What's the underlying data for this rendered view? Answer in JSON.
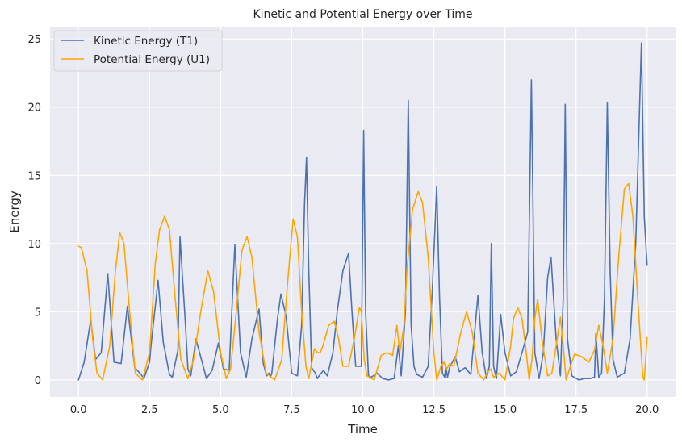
{
  "chart_data": {
    "type": "line",
    "title": "Kinetic and Potential Energy over Time",
    "xlabel": "Time",
    "ylabel": "Energy",
    "xlim": [
      -1.0,
      21.0
    ],
    "ylim": [
      -1.25,
      25.9
    ],
    "xticks": [
      0.0,
      2.5,
      5.0,
      7.5,
      10.0,
      12.5,
      15.0,
      17.5,
      20.0
    ],
    "xtick_labels": [
      "0.0",
      "2.5",
      "5.0",
      "7.5",
      "10.0",
      "12.5",
      "15.0",
      "17.5",
      "20.0"
    ],
    "yticks": [
      0,
      5,
      10,
      15,
      20,
      25
    ],
    "ytick_labels": [
      "0",
      "5",
      "10",
      "15",
      "20",
      "25"
    ],
    "grid": true,
    "background": "#eaeaf2",
    "legend_position": "top-left",
    "series": [
      {
        "name": "Kinetic Energy (T1)",
        "color": "#4c72b0",
        "x": [
          0.0,
          0.2,
          0.43,
          0.6,
          0.8,
          1.03,
          1.25,
          1.5,
          1.72,
          1.98,
          2.2,
          2.3,
          2.5,
          2.55,
          2.8,
          2.98,
          3.2,
          3.3,
          3.5,
          3.57,
          3.75,
          3.85,
          3.95,
          4.13,
          4.35,
          4.5,
          4.7,
          4.92,
          5.1,
          5.3,
          5.5,
          5.7,
          5.9,
          6.1,
          6.35,
          6.5,
          6.62,
          6.7,
          6.75,
          6.8,
          7.0,
          7.12,
          7.3,
          7.5,
          7.7,
          7.85,
          7.95,
          8.02,
          8.1,
          8.2,
          8.33,
          8.4,
          8.5,
          8.62,
          8.75,
          8.95,
          9.1,
          9.3,
          9.5,
          9.62,
          9.75,
          9.95,
          10.03,
          10.1,
          10.2,
          10.3,
          10.5,
          10.7,
          10.9,
          11.1,
          11.25,
          11.35,
          11.5,
          11.6,
          11.7,
          11.8,
          11.9,
          12.1,
          12.3,
          12.45,
          12.6,
          12.7,
          12.8,
          12.88,
          12.92,
          12.98,
          13.05,
          13.25,
          13.4,
          13.6,
          13.8,
          14.05,
          14.2,
          14.35,
          14.45,
          14.52,
          14.6,
          14.7,
          14.85,
          15.0,
          15.2,
          15.4,
          15.6,
          15.8,
          15.93,
          16.05,
          16.2,
          16.35,
          16.5,
          16.62,
          16.8,
          16.95,
          17.05,
          17.12,
          17.2,
          17.35,
          17.6,
          17.8,
          18.0,
          18.15,
          18.2,
          18.3,
          18.4,
          18.5,
          18.6,
          18.7,
          18.8,
          18.95,
          19.2,
          19.4,
          19.6,
          19.8,
          19.9,
          20.0
        ],
        "y": [
          0.0,
          1.3,
          4.4,
          1.5,
          2.0,
          7.8,
          1.3,
          1.2,
          5.4,
          0.9,
          0.4,
          0.1,
          1.3,
          2.5,
          7.3,
          2.8,
          0.4,
          0.2,
          2.2,
          10.5,
          4.5,
          0.8,
          0.3,
          3.0,
          1.3,
          0.1,
          0.7,
          2.7,
          0.8,
          0.7,
          9.9,
          2.0,
          0.2,
          3.0,
          5.2,
          1.2,
          0.3,
          0.5,
          0.2,
          0.5,
          4.5,
          6.3,
          4.7,
          0.5,
          0.3,
          4.0,
          12.8,
          16.3,
          8.0,
          0.9,
          0.5,
          0.1,
          0.4,
          0.7,
          0.3,
          2.0,
          5.0,
          8.0,
          9.3,
          5.0,
          1.0,
          1.0,
          18.3,
          5.0,
          0.3,
          0.2,
          0.5,
          0.1,
          0.0,
          0.1,
          2.5,
          0.3,
          5.0,
          20.5,
          4.0,
          1.0,
          0.4,
          0.2,
          1.0,
          6.8,
          14.2,
          6.0,
          0.5,
          0.2,
          1.0,
          0.2,
          0.9,
          1.7,
          0.6,
          0.9,
          0.4,
          6.2,
          2.0,
          0.1,
          1.0,
          10.0,
          1.0,
          0.1,
          4.8,
          2.0,
          0.3,
          0.6,
          2.0,
          3.5,
          22.0,
          2.0,
          0.1,
          2.0,
          7.5,
          9.0,
          3.0,
          0.3,
          6.0,
          20.2,
          3.0,
          0.3,
          0.0,
          0.1,
          0.1,
          0.2,
          3.4,
          0.2,
          0.5,
          6.0,
          20.3,
          8.0,
          1.5,
          0.2,
          0.5,
          3.0,
          10.0,
          24.7,
          12.0,
          8.4
        ]
      },
      {
        "name": "Potential Energy (U1)",
        "color": "#ffa500",
        "x": [
          0.0,
          0.1,
          0.3,
          0.5,
          0.65,
          0.85,
          1.1,
          1.3,
          1.45,
          1.6,
          1.8,
          2.0,
          2.25,
          2.5,
          2.7,
          2.85,
          3.03,
          3.2,
          3.4,
          3.6,
          3.85,
          4.05,
          4.3,
          4.55,
          4.75,
          5.0,
          5.2,
          5.35,
          5.55,
          5.75,
          5.93,
          6.1,
          6.35,
          6.6,
          6.9,
          7.15,
          7.35,
          7.55,
          7.7,
          7.85,
          8.0,
          8.1,
          8.3,
          8.4,
          8.5,
          8.6,
          8.8,
          9.0,
          9.15,
          9.3,
          9.5,
          9.7,
          9.88,
          9.95,
          10.05,
          10.15,
          10.4,
          10.65,
          10.85,
          11.05,
          11.2,
          11.3,
          11.45,
          11.55,
          11.75,
          11.95,
          12.1,
          12.3,
          12.5,
          12.6,
          12.75,
          12.85,
          12.95,
          13.05,
          13.2,
          13.45,
          13.65,
          13.85,
          14.05,
          14.25,
          14.4,
          14.5,
          14.6,
          14.8,
          15.0,
          15.2,
          15.3,
          15.45,
          15.6,
          15.75,
          15.85,
          15.95,
          16.05,
          16.15,
          16.3,
          16.5,
          16.65,
          16.8,
          16.95,
          17.05,
          17.15,
          17.3,
          17.45,
          17.7,
          17.95,
          18.15,
          18.3,
          18.45,
          18.6,
          18.8,
          19.0,
          19.2,
          19.35,
          19.5,
          19.7,
          19.85,
          19.9,
          20.0
        ],
        "y": [
          9.8,
          9.7,
          8.0,
          3.0,
          0.5,
          0.0,
          2.5,
          8.0,
          10.8,
          10.0,
          5.0,
          0.5,
          0.0,
          2.0,
          8.5,
          11.0,
          12.0,
          11.0,
          6.0,
          1.5,
          0.1,
          1.5,
          5.0,
          8.0,
          6.5,
          2.0,
          0.1,
          0.8,
          5.0,
          9.5,
          10.5,
          9.0,
          3.5,
          0.5,
          0.0,
          1.5,
          7.0,
          11.8,
          10.5,
          5.0,
          1.0,
          0.1,
          2.3,
          2.0,
          2.0,
          2.5,
          4.0,
          4.3,
          3.0,
          1.0,
          1.0,
          3.0,
          5.3,
          5.0,
          1.5,
          0.3,
          0.0,
          1.8,
          2.0,
          1.8,
          4.0,
          2.0,
          4.0,
          8.0,
          12.5,
          13.8,
          13.0,
          9.0,
          2.0,
          0.0,
          1.0,
          1.3,
          0.8,
          1.2,
          1.0,
          3.5,
          5.0,
          3.5,
          0.5,
          0.0,
          0.6,
          0.8,
          0.2,
          0.5,
          0.0,
          2.5,
          4.5,
          5.3,
          4.5,
          2.0,
          0.0,
          1.5,
          4.5,
          5.9,
          3.0,
          0.3,
          0.5,
          2.5,
          4.6,
          2.5,
          0.0,
          1.0,
          1.9,
          1.7,
          1.3,
          2.2,
          4.0,
          2.5,
          0.5,
          3.0,
          9.0,
          14.0,
          14.4,
          12.0,
          5.0,
          0.2,
          0.0,
          3.1
        ]
      }
    ]
  }
}
